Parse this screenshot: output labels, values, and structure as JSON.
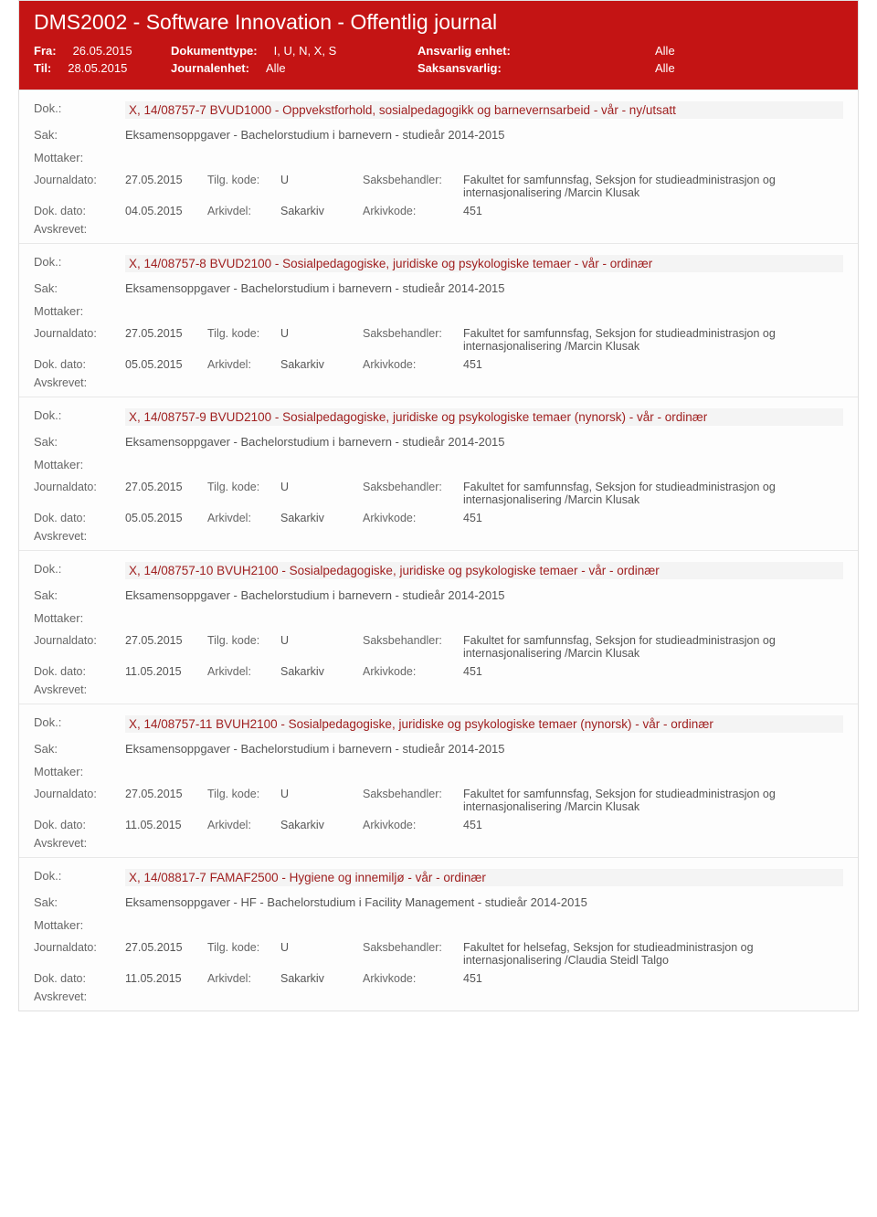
{
  "header": {
    "title": "DMS2002 - Software Innovation - Offentlig journal",
    "fra_label": "Fra:",
    "fra_value": "26.05.2015",
    "til_label": "Til:",
    "til_value": "28.05.2015",
    "doktype_label": "Dokumenttype:",
    "doktype_value": "I, U, N, X, S",
    "journalenhet_label": "Journalenhet:",
    "journalenhet_value": "Alle",
    "ansvenhet_label": "Ansvarlig enhet:",
    "ansvenhet_value": "Alle",
    "saksansvarlig_label": "Saksansvarlig:",
    "saksansvarlig_value": "Alle"
  },
  "labels": {
    "dok": "Dok.:",
    "sak": "Sak:",
    "mottaker": "Mottaker:",
    "journaldato": "Journaldato:",
    "tilgkode": "Tilg. kode:",
    "saksbehandler": "Saksbehandler:",
    "dokdato": "Dok. dato:",
    "arkivdel": "Arkivdel:",
    "arkivkode": "Arkivkode:",
    "avskrevet": "Avskrevet:"
  },
  "entries": [
    {
      "dok": "X, 14/08757-7 BVUD1000 - Oppvekstforhold, sosialpedagogikk og barnevernsarbeid - vår - ny/utsatt",
      "sak": "Eksamensoppgaver - Bachelorstudium i barnevern - studieår 2014-2015",
      "journaldato": "27.05.2015",
      "tilgkode": "U",
      "saksbehandler": "Fakultet for samfunnsfag, Seksjon for studieadministrasjon og internasjonalisering /Marcin Klusak",
      "dokdato": "04.05.2015",
      "arkivdel": "Sakarkiv",
      "arkivkode": "451"
    },
    {
      "dok": "X, 14/08757-8 BVUD2100 - Sosialpedagogiske, juridiske og psykologiske temaer - vår - ordinær",
      "sak": "Eksamensoppgaver - Bachelorstudium i barnevern - studieår 2014-2015",
      "journaldato": "27.05.2015",
      "tilgkode": "U",
      "saksbehandler": "Fakultet for samfunnsfag, Seksjon for studieadministrasjon og internasjonalisering /Marcin Klusak",
      "dokdato": "05.05.2015",
      "arkivdel": "Sakarkiv",
      "arkivkode": "451"
    },
    {
      "dok": "X, 14/08757-9 BVUD2100 - Sosialpedagogiske, juridiske og psykologiske temaer (nynorsk) - vår - ordinær",
      "sak": "Eksamensoppgaver - Bachelorstudium i barnevern - studieår 2014-2015",
      "journaldato": "27.05.2015",
      "tilgkode": "U",
      "saksbehandler": "Fakultet for samfunnsfag, Seksjon for studieadministrasjon og internasjonalisering /Marcin Klusak",
      "dokdato": "05.05.2015",
      "arkivdel": "Sakarkiv",
      "arkivkode": "451"
    },
    {
      "dok": "X, 14/08757-10 BVUH2100 - Sosialpedagogiske, juridiske og psykologiske temaer - vår - ordinær",
      "sak": "Eksamensoppgaver - Bachelorstudium i barnevern - studieår 2014-2015",
      "journaldato": "27.05.2015",
      "tilgkode": "U",
      "saksbehandler": "Fakultet for samfunnsfag, Seksjon for studieadministrasjon og internasjonalisering /Marcin Klusak",
      "dokdato": "11.05.2015",
      "arkivdel": "Sakarkiv",
      "arkivkode": "451"
    },
    {
      "dok": "X, 14/08757-11 BVUH2100 - Sosialpedagogiske, juridiske og psykologiske temaer (nynorsk) - vår - ordinær",
      "sak": "Eksamensoppgaver - Bachelorstudium i barnevern - studieår 2014-2015",
      "journaldato": "27.05.2015",
      "tilgkode": "U",
      "saksbehandler": "Fakultet for samfunnsfag, Seksjon for studieadministrasjon og internasjonalisering /Marcin Klusak",
      "dokdato": "11.05.2015",
      "arkivdel": "Sakarkiv",
      "arkivkode": "451"
    },
    {
      "dok": "X, 14/08817-7 FAMAF2500 - Hygiene og innemiljø - vår - ordinær",
      "sak": "Eksamensoppgaver  - HF - Bachelorstudium i Facility Management - studieår 2014-2015",
      "journaldato": "27.05.2015",
      "tilgkode": "U",
      "saksbehandler": "Fakultet for helsefag, Seksjon for studieadministrasjon og internasjonalisering /Claudia Steidl Talgo",
      "dokdato": "11.05.2015",
      "arkivdel": "Sakarkiv",
      "arkivkode": "451"
    }
  ]
}
